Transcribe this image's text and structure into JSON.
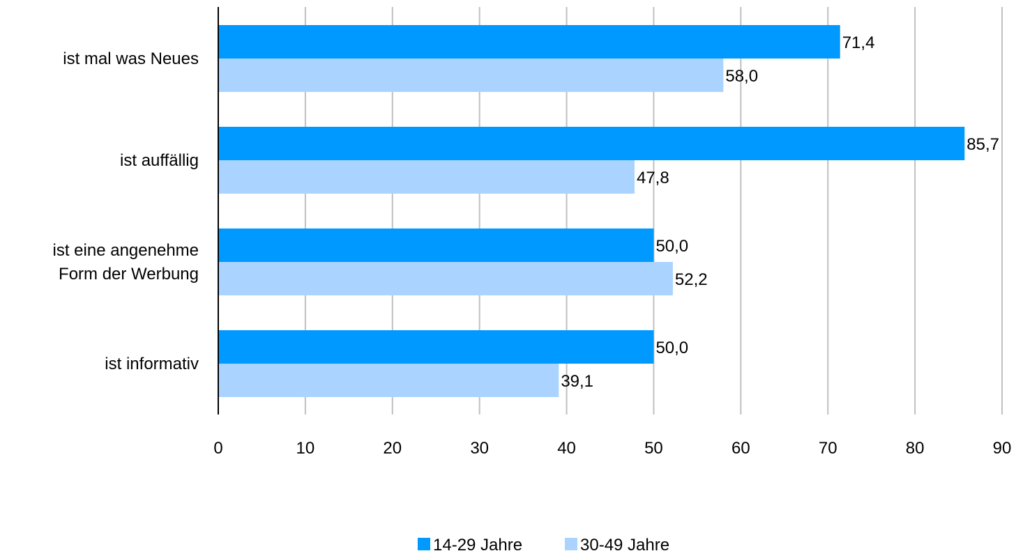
{
  "chart_data": {
    "type": "bar",
    "orientation": "horizontal",
    "categories": [
      [
        "ist mal was Neues"
      ],
      [
        "ist auffällig"
      ],
      [
        "ist eine angenehme",
        "Form der Werbung"
      ],
      [
        "ist informativ"
      ]
    ],
    "series": [
      {
        "name": "14-29 Jahre",
        "color": "#0099ff",
        "values": [
          71.4,
          85.7,
          50.0,
          50.0
        ],
        "labels": [
          "71,4",
          "85,7",
          "50,0",
          "50,0"
        ]
      },
      {
        "name": "30-49 Jahre",
        "color": "#aad4ff",
        "values": [
          58.0,
          47.8,
          52.2,
          39.1
        ],
        "labels": [
          "58,0",
          "47,8",
          "52,2",
          "39,1"
        ]
      }
    ],
    "xlim": [
      0,
      90
    ],
    "xticks": [
      0,
      10,
      20,
      30,
      40,
      50,
      60,
      70,
      80,
      90
    ],
    "grid": true,
    "legend_position": "bottom-center",
    "title": "",
    "xlabel": "",
    "ylabel": ""
  }
}
